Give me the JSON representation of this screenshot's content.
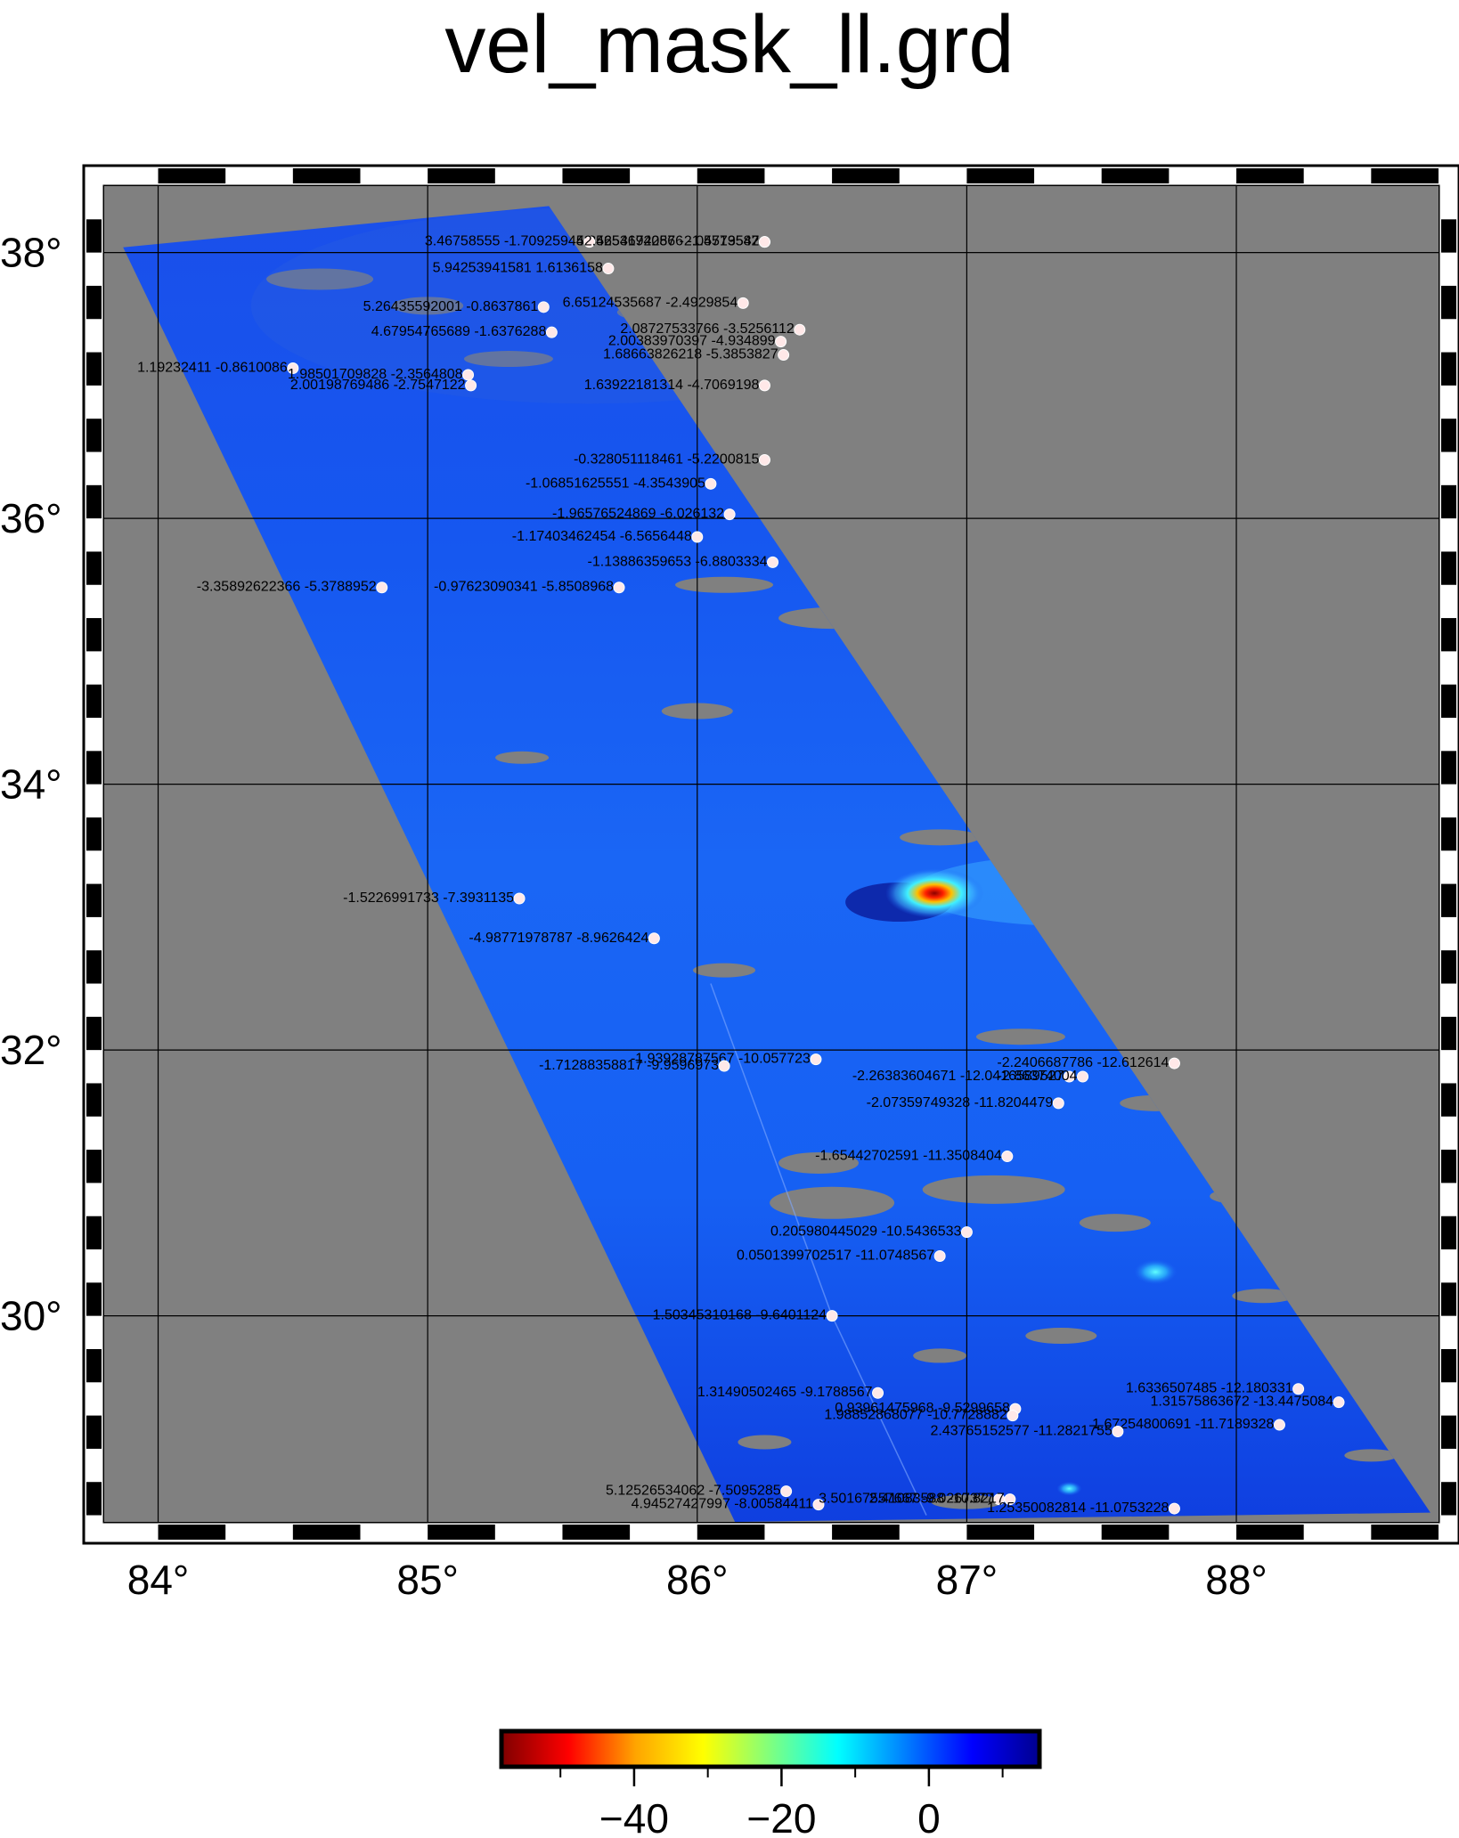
{
  "title": "vel_mask_ll.grd",
  "map": {
    "lon_range": [
      83.8,
      88.75
    ],
    "lat_range": [
      28.45,
      38.5
    ],
    "lon_ticks": [
      84,
      85,
      86,
      87,
      88
    ],
    "lat_ticks": [
      30,
      32,
      34,
      36,
      38
    ],
    "lon_tick_labels": [
      "84°",
      "85°",
      "86°",
      "87°",
      "88°"
    ],
    "lat_tick_labels": [
      "30°",
      "32°",
      "34°",
      "36°",
      "38°"
    ],
    "gridlines": true,
    "background_color": "#808080",
    "swath_corners": [
      [
        83.87,
        38.04
      ],
      [
        85.45,
        38.35
      ],
      [
        88.72,
        28.52
      ],
      [
        86.14,
        28.45
      ]
    ],
    "anomaly": {
      "lon": 86.88,
      "lat": 33.18,
      "value": -55
    }
  },
  "colorbar": {
    "range": [
      -58,
      15
    ],
    "ticks": [
      -40,
      -20,
      0
    ],
    "tick_labels": [
      "−40",
      "−20",
      "0"
    ],
    "palette": [
      "#7f0000",
      "#ff0000",
      "#ffa500",
      "#ffff00",
      "#7fff7f",
      "#00ffff",
      "#007fff",
      "#0000ff",
      "#00008f"
    ]
  },
  "stations": [
    {
      "lon": 86.25,
      "lat": 38.08,
      "text": "4.34653194286 -2.05573582"
    },
    {
      "lon": 85.6,
      "lat": 38.08,
      "text": "3.46758555 -1.70925945"
    },
    {
      "lon": 86.25,
      "lat": 38.08,
      "text": "2.52546720576 -1.4719547"
    },
    {
      "lon": 85.67,
      "lat": 37.88,
      "text": "5.94253941581 1.6136158"
    },
    {
      "lon": 85.43,
      "lat": 37.59,
      "text": "5.26435592001 -0.8637861"
    },
    {
      "lon": 86.17,
      "lat": 37.62,
      "text": "6.65124535687 -2.4929854"
    },
    {
      "lon": 86.38,
      "lat": 37.42,
      "text": "2.08727533766 -3.5256112"
    },
    {
      "lon": 85.46,
      "lat": 37.4,
      "text": "4.67954765689 -1.6376288"
    },
    {
      "lon": 86.31,
      "lat": 37.33,
      "text": "2.00383970397 -4.934899"
    },
    {
      "lon": 86.32,
      "lat": 37.23,
      "text": "1.68663826218 -5.3853827"
    },
    {
      "lon": 84.5,
      "lat": 37.13,
      "text": "1.19232411 -0.8610086"
    },
    {
      "lon": 85.15,
      "lat": 37.08,
      "text": "1.98501709828 -2.3564808"
    },
    {
      "lon": 85.16,
      "lat": 37.0,
      "text": "2.00198769486 -2.7547122"
    },
    {
      "lon": 86.25,
      "lat": 37.0,
      "text": "1.63922181314 -4.7069198"
    },
    {
      "lon": 86.25,
      "lat": 36.44,
      "text": "-0.328051118461 -5.2200815"
    },
    {
      "lon": 86.05,
      "lat": 36.26,
      "text": "-1.06851625551 -4.3543905"
    },
    {
      "lon": 86.12,
      "lat": 36.03,
      "text": "-1.96576524869 -6.026132"
    },
    {
      "lon": 86.0,
      "lat": 35.86,
      "text": "-1.17403462454 -6.5656448"
    },
    {
      "lon": 86.28,
      "lat": 35.67,
      "text": "-1.13886359653 -6.8803334"
    },
    {
      "lon": 84.83,
      "lat": 35.48,
      "text": "-3.35892622366 -5.3788952"
    },
    {
      "lon": 85.71,
      "lat": 35.48,
      "text": "-0.97623090341 -5.8508968"
    },
    {
      "lon": 85.34,
      "lat": 33.14,
      "text": "-1.5226991733 -7.3931135"
    },
    {
      "lon": 85.84,
      "lat": 32.84,
      "text": "-4.98771978787 -8.9626424"
    },
    {
      "lon": 86.44,
      "lat": 31.93,
      "text": "-1.93928787567 -10.057723"
    },
    {
      "lon": 86.1,
      "lat": 31.88,
      "text": "-1.71288358817 -9.9596973"
    },
    {
      "lon": 87.38,
      "lat": 31.8,
      "text": "-2.26383604671 -12.0416589527"
    },
    {
      "lon": 87.43,
      "lat": 31.8,
      "text": "-2.86374004"
    },
    {
      "lon": 87.77,
      "lat": 31.9,
      "text": "-2.2406687786 -12.612614"
    },
    {
      "lon": 87.34,
      "lat": 31.6,
      "text": "-2.07359749328 -11.8204479"
    },
    {
      "lon": 87.15,
      "lat": 31.2,
      "text": "-1.65442702591 -11.3508404"
    },
    {
      "lon": 87.0,
      "lat": 30.63,
      "text": "0.205980445029 -10.5436533"
    },
    {
      "lon": 86.9,
      "lat": 30.45,
      "text": "0.0501399702517 -11.0748567"
    },
    {
      "lon": 86.5,
      "lat": 30.0,
      "text": "1.50345310168 -9.6401124"
    },
    {
      "lon": 86.67,
      "lat": 29.42,
      "text": "1.31490502465 -9.1788567"
    },
    {
      "lon": 87.18,
      "lat": 29.3,
      "text": "0.93961475968 -9.5299658"
    },
    {
      "lon": 87.17,
      "lat": 29.25,
      "text": "1.98852868077 -10.7728882"
    },
    {
      "lon": 88.23,
      "lat": 29.45,
      "text": "1.6336507485 -12.180331"
    },
    {
      "lon": 88.38,
      "lat": 29.35,
      "text": "1.31575863672 -13.4475084"
    },
    {
      "lon": 88.16,
      "lat": 29.18,
      "text": "1.67254800691 -11.7189328"
    },
    {
      "lon": 87.56,
      "lat": 29.13,
      "text": "2.43765152577 -11.2821755"
    },
    {
      "lon": 86.33,
      "lat": 28.68,
      "text": "5.12526534062 -7.5095285"
    },
    {
      "lon": 86.45,
      "lat": 28.58,
      "text": "4.94527427997 -8.00584411"
    },
    {
      "lon": 87.12,
      "lat": 28.62,
      "text": "3.50167557667 -9.0267377"
    },
    {
      "lon": 87.16,
      "lat": 28.62,
      "text": "2.41083588 -10.8217"
    },
    {
      "lon": 87.77,
      "lat": 28.55,
      "text": "1.25350082814 -11.0753228"
    }
  ]
}
